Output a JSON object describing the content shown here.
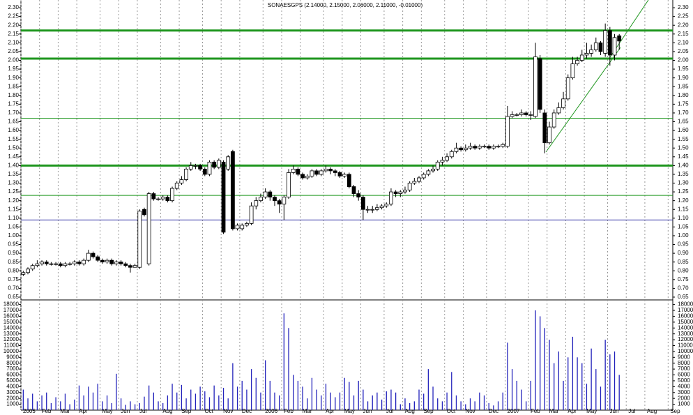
{
  "chart_data": [
    {
      "type": "candlestick",
      "title": "SONAESGPS (2.14000, 2.15000, 2.06000, 2.11000, -0.01000)",
      "categories": [
        "2005",
        null,
        null,
        null,
        "Feb",
        null,
        null,
        null,
        "Mar",
        null,
        null,
        null,
        "Apr",
        null,
        null,
        null,
        null,
        "May",
        null,
        null,
        null,
        "Jun",
        null,
        null,
        null,
        "Jul",
        null,
        null,
        null,
        null,
        "Aug",
        null,
        null,
        null,
        "Sep",
        null,
        null,
        null,
        null,
        "Oct",
        null,
        null,
        null,
        "Nov",
        null,
        null,
        null,
        "Dec",
        null,
        null,
        null,
        null,
        "2006",
        null,
        null,
        null,
        "Feb",
        null,
        null,
        null,
        "Mar",
        null,
        null,
        null,
        null,
        "Apr",
        null,
        null,
        null,
        "May",
        null,
        null,
        null,
        "Jun",
        null,
        null,
        null,
        null,
        "Jul",
        null,
        null,
        null,
        "Aug",
        null,
        null,
        null,
        "Sep",
        null,
        null,
        null,
        null,
        "Oct",
        null,
        null,
        null,
        "Nov",
        null,
        null,
        null,
        null,
        "Dec",
        null,
        null,
        null,
        "2007",
        null,
        null,
        null,
        null,
        "Feb",
        null,
        null,
        null,
        "Mar",
        null,
        null,
        null,
        "Apr",
        null,
        null,
        null,
        "May",
        null,
        null,
        null,
        null,
        "Jun",
        null,
        null,
        null,
        "Jul",
        null,
        null,
        null,
        "Aug",
        null,
        null,
        null,
        null,
        "Sep"
      ],
      "open": [
        0.78,
        0.79,
        0.81,
        0.83,
        0.84,
        0.85,
        0.84,
        0.84,
        0.84,
        0.83,
        0.84,
        0.84,
        0.85,
        0.84,
        0.86,
        0.9,
        0.88,
        0.86,
        0.85,
        0.86,
        0.84,
        0.85,
        0.84,
        0.83,
        0.82,
        0.82,
        1.15,
        0.84,
        1.24,
        1.21,
        1.21,
        1.22,
        1.2,
        1.27,
        1.3,
        1.32,
        1.38,
        1.4,
        1.4,
        1.38,
        1.35,
        1.42,
        1.39,
        1.42,
        1.38,
        1.48,
        1.04,
        1.04,
        1.06,
        1.07,
        1.17,
        1.2,
        1.22,
        1.25,
        1.22,
        1.2,
        1.18,
        1.22,
        1.36,
        1.38,
        1.35,
        1.33,
        1.34,
        1.37,
        1.35,
        1.37,
        1.38,
        1.37,
        1.36,
        1.34,
        1.35,
        1.28,
        1.24,
        1.22,
        1.15,
        1.15,
        1.15,
        1.16,
        1.17,
        1.18,
        1.25,
        1.24,
        1.25,
        1.26,
        1.3,
        1.31,
        1.33,
        1.35,
        1.37,
        1.38,
        1.42,
        1.43,
        1.45,
        1.48,
        1.5,
        1.49,
        1.5,
        1.51,
        1.5,
        1.51,
        1.51,
        1.5,
        1.51,
        1.51,
        1.51,
        1.68,
        1.69,
        1.69,
        1.7,
        1.69,
        1.68,
        2.01,
        1.7,
        1.53,
        1.62,
        1.7,
        1.73,
        1.78,
        1.9,
        1.98,
        2.0,
        2.03,
        2.04,
        2.06,
        2.1,
        2.04,
        2.17,
        2.03,
        2.14,
        null,
        null,
        null,
        null,
        null,
        null,
        null,
        null,
        null,
        null,
        null
      ],
      "high": [
        0.8,
        0.82,
        0.84,
        0.86,
        0.86,
        0.86,
        0.85,
        0.85,
        0.85,
        0.85,
        0.85,
        0.86,
        0.86,
        0.87,
        0.92,
        0.91,
        0.89,
        0.87,
        0.87,
        0.87,
        0.86,
        0.86,
        0.85,
        0.84,
        0.84,
        1.15,
        1.16,
        1.25,
        1.25,
        1.22,
        1.23,
        1.23,
        1.28,
        1.31,
        1.34,
        1.39,
        1.42,
        1.41,
        1.41,
        1.39,
        1.43,
        1.43,
        1.44,
        1.43,
        1.46,
        1.49,
        1.07,
        1.07,
        1.08,
        1.19,
        1.22,
        1.24,
        1.27,
        1.26,
        1.23,
        1.21,
        1.23,
        1.38,
        1.4,
        1.39,
        1.36,
        1.35,
        1.38,
        1.38,
        1.38,
        1.4,
        1.39,
        1.38,
        1.37,
        1.36,
        1.36,
        1.29,
        1.26,
        1.23,
        1.17,
        1.17,
        1.18,
        1.18,
        1.19,
        1.27,
        1.26,
        1.26,
        1.28,
        1.31,
        1.33,
        1.34,
        1.36,
        1.38,
        1.4,
        1.43,
        1.45,
        1.47,
        1.49,
        1.53,
        1.51,
        1.52,
        1.53,
        1.52,
        1.52,
        1.52,
        1.52,
        1.52,
        1.52,
        1.53,
        1.74,
        1.71,
        1.7,
        1.72,
        1.71,
        1.71,
        2.1,
        2.03,
        1.72,
        1.65,
        1.72,
        1.76,
        1.82,
        1.92,
        2.02,
        2.02,
        2.06,
        2.1,
        2.09,
        2.13,
        2.11,
        2.21,
        2.19,
        2.15,
        2.15,
        null,
        null,
        null,
        null,
        null,
        null,
        null,
        null,
        null,
        null,
        null
      ],
      "low": [
        0.77,
        0.78,
        0.8,
        0.82,
        0.83,
        0.83,
        0.83,
        0.83,
        0.82,
        0.82,
        0.83,
        0.83,
        0.83,
        0.83,
        0.85,
        0.87,
        0.85,
        0.84,
        0.84,
        0.83,
        0.83,
        0.83,
        0.82,
        0.79,
        0.82,
        0.81,
        1.11,
        0.83,
        1.2,
        1.2,
        1.2,
        1.19,
        1.19,
        1.26,
        1.29,
        1.31,
        1.37,
        1.38,
        1.37,
        1.34,
        1.34,
        1.38,
        1.38,
        1.01,
        1.37,
        1.03,
        1.03,
        1.03,
        1.05,
        1.06,
        1.15,
        1.19,
        1.21,
        1.2,
        1.17,
        1.13,
        1.09,
        1.21,
        1.35,
        1.34,
        1.32,
        1.32,
        1.33,
        1.34,
        1.34,
        1.36,
        1.35,
        1.34,
        1.33,
        1.33,
        1.27,
        1.22,
        1.2,
        1.09,
        1.13,
        1.13,
        1.14,
        1.15,
        1.16,
        1.17,
        1.22,
        1.22,
        1.24,
        1.25,
        1.29,
        1.3,
        1.32,
        1.34,
        1.36,
        1.37,
        1.4,
        1.42,
        1.44,
        1.47,
        1.48,
        1.48,
        1.49,
        1.49,
        1.49,
        1.5,
        1.49,
        1.49,
        1.5,
        1.5,
        1.5,
        1.67,
        1.68,
        1.68,
        1.68,
        1.66,
        1.67,
        1.7,
        1.47,
        1.52,
        1.61,
        1.69,
        1.72,
        1.77,
        1.89,
        1.97,
        1.99,
        2.01,
        2.02,
        2.05,
        2.03,
        2.02,
        1.97,
        2.0,
        2.06,
        null,
        null,
        null,
        null,
        null,
        null,
        null,
        null,
        null,
        null,
        null
      ],
      "close": [
        0.79,
        0.81,
        0.83,
        0.84,
        0.85,
        0.84,
        0.84,
        0.84,
        0.83,
        0.84,
        0.84,
        0.85,
        0.84,
        0.86,
        0.9,
        0.88,
        0.86,
        0.85,
        0.86,
        0.84,
        0.85,
        0.84,
        0.83,
        0.82,
        0.83,
        1.14,
        1.12,
        1.24,
        1.21,
        1.21,
        1.22,
        1.2,
        1.27,
        1.3,
        1.32,
        1.38,
        1.4,
        1.4,
        1.38,
        1.35,
        1.42,
        1.39,
        1.43,
        1.02,
        1.45,
        1.04,
        1.06,
        1.06,
        1.07,
        1.17,
        1.2,
        1.22,
        1.25,
        1.22,
        1.2,
        1.18,
        1.22,
        1.36,
        1.38,
        1.35,
        1.33,
        1.34,
        1.37,
        1.35,
        1.37,
        1.38,
        1.37,
        1.36,
        1.34,
        1.35,
        1.28,
        1.24,
        1.22,
        1.15,
        1.15,
        1.15,
        1.16,
        1.17,
        1.18,
        1.25,
        1.24,
        1.25,
        1.26,
        1.3,
        1.31,
        1.33,
        1.35,
        1.37,
        1.38,
        1.42,
        1.43,
        1.45,
        1.48,
        1.5,
        1.49,
        1.5,
        1.51,
        1.5,
        1.51,
        1.51,
        1.5,
        1.51,
        1.51,
        1.52,
        1.68,
        1.69,
        1.69,
        1.7,
        1.69,
        1.69,
        2.02,
        1.72,
        1.53,
        1.62,
        1.7,
        1.73,
        1.78,
        1.9,
        1.98,
        2.0,
        2.03,
        2.04,
        2.06,
        2.1,
        2.05,
        2.17,
        2.03,
        2.13,
        2.11,
        null,
        null,
        null,
        null,
        null,
        null,
        null,
        null,
        null,
        null,
        null
      ],
      "ylim": [
        0.634,
        2.344
      ],
      "yticks": [
        {
          "value": 0.65,
          "label": "0.65"
        },
        {
          "value": 0.7,
          "label": "0.70"
        },
        {
          "value": 0.75,
          "label": "0.75"
        },
        {
          "value": 0.8,
          "label": "0.80"
        },
        {
          "value": 0.85,
          "label": "0.85"
        },
        {
          "value": 0.9,
          "label": "0.90"
        },
        {
          "value": 0.95,
          "label": "0.95"
        },
        {
          "value": 1.0,
          "label": "1.00"
        },
        {
          "value": 1.05,
          "label": "1.05"
        },
        {
          "value": 1.1,
          "label": "1.10"
        },
        {
          "value": 1.15,
          "label": "1.15"
        },
        {
          "value": 1.2,
          "label": "1.20"
        },
        {
          "value": 1.25,
          "label": "1.25"
        },
        {
          "value": 1.3,
          "label": "1.30"
        },
        {
          "value": 1.35,
          "label": "1.35"
        },
        {
          "value": 1.4,
          "label": "1.40"
        },
        {
          "value": 1.45,
          "label": "1.45"
        },
        {
          "value": 1.5,
          "label": "1.50"
        },
        {
          "value": 1.55,
          "label": "1.55"
        },
        {
          "value": 1.6,
          "label": "1.60"
        },
        {
          "value": 1.65,
          "label": "1.65"
        },
        {
          "value": 1.7,
          "label": "1.70"
        },
        {
          "value": 1.75,
          "label": "1.75"
        },
        {
          "value": 1.8,
          "label": "1.80"
        },
        {
          "value": 1.85,
          "label": "1.85"
        },
        {
          "value": 1.9,
          "label": "1.90"
        },
        {
          "value": 1.95,
          "label": "1.95"
        },
        {
          "value": 2.0,
          "label": "2.00"
        },
        {
          "value": 2.05,
          "label": "2.05"
        },
        {
          "value": 2.1,
          "label": "2.10"
        },
        {
          "value": 2.15,
          "label": "2.15"
        },
        {
          "value": 2.2,
          "label": "2.20"
        },
        {
          "value": 2.25,
          "label": "2.25"
        },
        {
          "value": 2.3,
          "label": "2.30"
        }
      ],
      "hlines": [
        {
          "value": 2.17,
          "color": "#1e961e",
          "thick": true
        },
        {
          "value": 2.01,
          "color": "#1e961e",
          "thick": true
        },
        {
          "value": 1.67,
          "color": "#1e961e",
          "thick": false
        },
        {
          "value": 1.4,
          "color": "#1e961e",
          "thick": true
        },
        {
          "value": 1.23,
          "color": "#1e961e",
          "thick": false
        },
        {
          "value": 1.09,
          "color": "#2a2aa0",
          "thick": false
        }
      ]
    },
    {
      "type": "bar",
      "color": "#2222bb",
      "values": [
        3500,
        2000,
        2800,
        1500,
        2500,
        3000,
        1200,
        2200,
        1500,
        2800,
        1000,
        1800,
        4200,
        2500,
        4000,
        3000,
        4500,
        1500,
        2500,
        1200,
        6200,
        2000,
        900,
        1500,
        1000,
        1200,
        2300,
        4200,
        3000,
        1500,
        1200,
        2500,
        4500,
        3000,
        4300,
        2000,
        3500,
        2800,
        4000,
        3200,
        2200,
        4200,
        2500,
        3800,
        2000,
        8000,
        4000,
        5000,
        3500,
        7000,
        5500,
        3000,
        8500,
        5000,
        3000,
        2500,
        16500,
        14000,
        6000,
        5000,
        4000,
        2000,
        5500,
        3500,
        2500,
        4500,
        3000,
        2200,
        3000,
        5500,
        4800,
        2500,
        5000,
        3500,
        1500,
        2500,
        3000,
        1800,
        3200,
        3500,
        3000,
        1000,
        2000,
        1200,
        1500,
        3500,
        2800,
        7000,
        4000,
        2000,
        1500,
        3000,
        6500,
        2500,
        1500,
        1000,
        2000,
        1500,
        3000,
        2500,
        1200,
        800,
        1500,
        3000,
        11500,
        7000,
        5000,
        3500,
        1500,
        5000,
        17000,
        16000,
        14000,
        12000,
        8000,
        10000,
        5000,
        9000,
        12500,
        9000,
        8000,
        4500,
        10500,
        7000,
        4000,
        12000,
        9500,
        10000,
        6000,
        null,
        null,
        null,
        null,
        null,
        null,
        null,
        null,
        null,
        null,
        null
      ],
      "ylim": [
        0,
        18550
      ],
      "yticks": [
        1000,
        2000,
        3000,
        4000,
        5000,
        6000,
        7000,
        8000,
        9000,
        10000,
        11000,
        12000,
        13000,
        14000,
        15000,
        16000,
        17000,
        18000
      ]
    }
  ]
}
